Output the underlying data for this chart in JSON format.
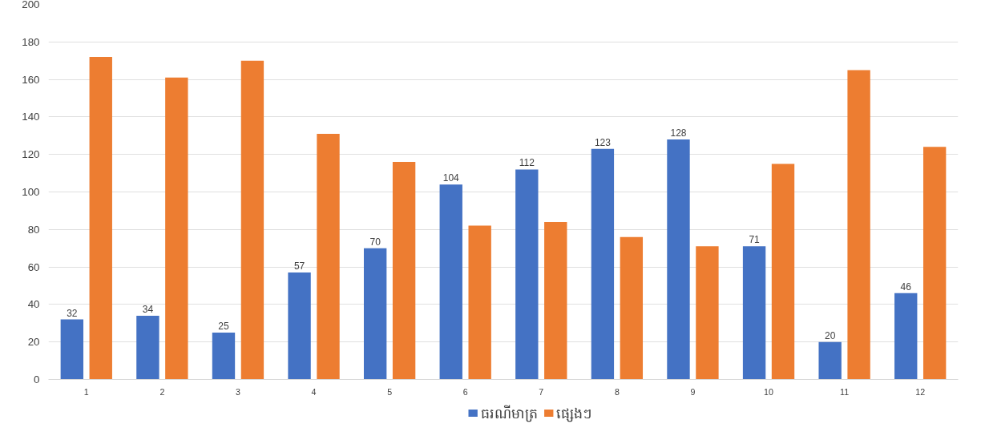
{
  "chart_data": {
    "type": "bar",
    "categories": [
      "1",
      "2",
      "3",
      "4",
      "5",
      "6",
      "7",
      "8",
      "9",
      "10",
      "11",
      "12"
    ],
    "series": [
      {
        "name": "ធរណីមាត្រ",
        "color": "#4472c4",
        "values": [
          32,
          34,
          25,
          57,
          70,
          104,
          112,
          123,
          128,
          71,
          20,
          46
        ],
        "value_labels": [
          "32",
          "34",
          "25",
          "57",
          "70",
          "104",
          "112",
          "123",
          "128",
          "71",
          "20",
          "46"
        ]
      },
      {
        "name": "ផ្សេងៗ",
        "color": "#ed7d31",
        "values": [
          172,
          161,
          170,
          131,
          116,
          82,
          84,
          76,
          71,
          115,
          165,
          124
        ]
      }
    ],
    "ylim": [
      0,
      200
    ],
    "yticks": [
      0,
      20,
      40,
      60,
      80,
      100,
      120,
      140,
      160,
      180,
      200
    ],
    "grid": "y",
    "legend": "bottom"
  }
}
